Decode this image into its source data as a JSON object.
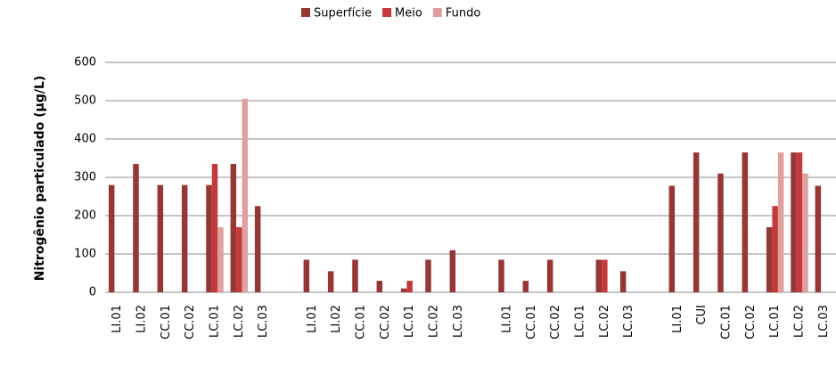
{
  "chart_data": {
    "type": "bar",
    "y_label": "Nitrogênio particulado  (µg/L)",
    "categories": [
      "LI.01",
      "LI.02",
      "CC.01",
      "CC.02",
      "LC.01",
      "LC.02",
      "LC.03",
      null,
      "LI.01",
      "LI.02",
      "CC.01",
      "CC.02",
      "LC.01",
      "LC.02",
      "LC.03",
      null,
      "LI.01",
      "CC.01",
      "CC.02",
      "LC.01",
      "LC.02",
      "LC.03",
      null,
      "LI.01",
      "CUI",
      "CC.01",
      "CC.02",
      "LC.01",
      "LC.02",
      "LC.03"
    ],
    "series": [
      {
        "name": "Superfície",
        "color": "#953735",
        "values": [
          280,
          335,
          280,
          280,
          280,
          335,
          225,
          null,
          85,
          55,
          85,
          30,
          10,
          85,
          110,
          null,
          85,
          30,
          85,
          null,
          85,
          55,
          null,
          278,
          365,
          310,
          365,
          170,
          365,
          278
        ]
      },
      {
        "name": "Meio",
        "color": "#c43a3a",
        "values": [
          null,
          null,
          null,
          null,
          335,
          170,
          null,
          null,
          null,
          null,
          null,
          null,
          30,
          null,
          null,
          null,
          null,
          null,
          null,
          null,
          85,
          null,
          null,
          null,
          null,
          null,
          null,
          225,
          365,
          null
        ]
      },
      {
        "name": "Fundo",
        "color": "#e0a0a0",
        "values": [
          null,
          null,
          null,
          null,
          170,
          505,
          null,
          null,
          null,
          null,
          null,
          null,
          null,
          null,
          null,
          null,
          null,
          null,
          null,
          null,
          null,
          null,
          null,
          null,
          null,
          null,
          null,
          365,
          310,
          null
        ]
      }
    ],
    "ylim": [
      0,
      600
    ],
    "yticks": [
      0,
      100,
      200,
      300,
      400,
      500,
      600
    ],
    "grid": true,
    "legend": "top"
  }
}
